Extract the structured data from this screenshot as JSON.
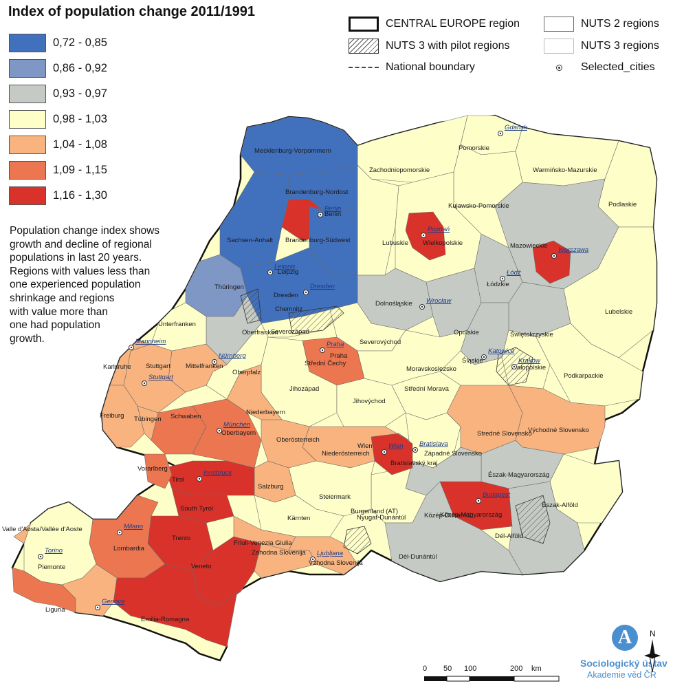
{
  "title": "Index of population change 2011/1991",
  "legend": {
    "classes": [
      {
        "label": "0,72 - 0,85",
        "color": "#4170bd"
      },
      {
        "label": "0,86 - 0,92",
        "color": "#7f97c4"
      },
      {
        "label": "0,93 - 0,97",
        "color": "#c5cbc4"
      },
      {
        "label": "0,98 - 1,03",
        "color": "#feffc8"
      },
      {
        "label": "1,04 - 1,08",
        "color": "#f9b37e"
      },
      {
        "label": "1,09 - 1,15",
        "color": "#ec7650"
      },
      {
        "label": "1,16 - 1,30",
        "color": "#d8322a"
      }
    ],
    "reference": {
      "central_europe": "CENTRAL EUROPE region",
      "nuts3_pilot": "NUTS 3 with pilot regions",
      "national_boundary": "National boundary",
      "nuts2": "NUTS 2 regions",
      "nuts3": "NUTS 3 regions",
      "selected_cities": "Selected_cities"
    }
  },
  "description": [
    "Population change index shows",
    "growth and decline of regional",
    "populations in last 20 years.",
    "Regions with values less than",
    "one experienced population",
    "shrinkage and regions",
    "with value more than",
    "one had population",
    "growth."
  ],
  "region_labels": [
    "Mecklenburg-Vorpommern",
    "Brandenburg-Nordost",
    "Berlin",
    "Sachsen-Anhalt",
    "Brandenburg-Südwest",
    "Leipzig",
    "Thüringen",
    "Dresden",
    "Chemnitz",
    "Unterfranken",
    "Oberfranken",
    "Karlsruhe",
    "Stuttgart",
    "Mittelfranken",
    "Oberpfalz",
    "Niederbayern",
    "Freiburg",
    "Tübingen",
    "Schwaben",
    "Oberbayern",
    "Oberösterreich",
    "Niederösterreich",
    "Vorarlberg",
    "Tirol",
    "Salzburg",
    "South Tyrol",
    "Steiermark",
    "Kärnten",
    "Burgenland (AT)",
    "Wien",
    "Bratislavský kraj",
    "Západné Slovensko",
    "Stredné Slovensko",
    "Východné Slovensko",
    "Észak-Magyarország",
    "Közép-Magyarország",
    "Észak-Alföld",
    "Dél-Alföld",
    "Dél-Dunántúl",
    "Közép-Dunántúl",
    "Nyugat-Dunántúl",
    "Valle d'Aosta/Vallée d'Aoste",
    "Lombardia",
    "Trento",
    "Veneto",
    "Friuli-Venezia Giulia",
    "Zahodna Slovenija",
    "Vzhodna Slovenija",
    "Piemonte",
    "Liguria",
    "Emilia-Romagna",
    "Severozápad",
    "Praha",
    "Severovýchod",
    "Střední Čechy",
    "Jihozápad",
    "Jihovýchod",
    "Moravskoslezsko",
    "Střední Morava",
    "Zachodniopomorskie",
    "Pomorskie",
    "Warmińsko-Mazurskie",
    "Kujawsko-Pomorskie",
    "Podlaskie",
    "Lubuskie",
    "Wielkopolskie",
    "Mazowieckie",
    "Łódzkie",
    "Dolnośląskie",
    "Lubelskie",
    "Opolskie",
    "Świętokrzyskie",
    "Śląskie",
    "Małopolskie",
    "Podkarpackie"
  ],
  "cities": [
    "Gdańsk",
    "Berlin",
    "Poznań",
    "Warszawa",
    "Łódź",
    "Leipzig",
    "Dresden",
    "Wrocław",
    "Praha",
    "Katowice",
    "Kraków",
    "Mannheim",
    "Nürnberg",
    "Stuttgart",
    "München",
    "Wien",
    "Bratislava",
    "Innsbruck",
    "Budapest",
    "Milano",
    "Torino",
    "Genova",
    "Ljubljana"
  ],
  "scale": {
    "ticks": [
      "0",
      "50",
      "100",
      "200"
    ],
    "unit": "km"
  },
  "logo": {
    "glyph": "A",
    "line1": "Sociologický ústav",
    "line2": "Akademie věd ČR"
  },
  "north_label": "N"
}
